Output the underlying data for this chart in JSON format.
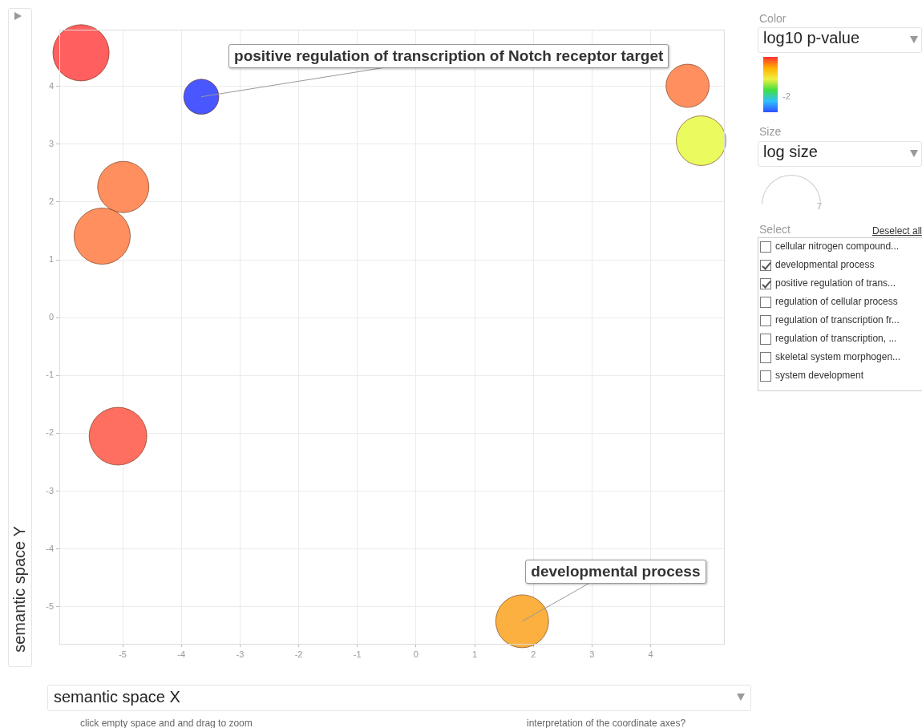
{
  "chart_data": {
    "type": "bubble",
    "xlabel": "semantic space X",
    "ylabel": "semantic space Y",
    "x": [
      -5.71,
      -3.66,
      -4.99,
      -5.35,
      -5.08,
      1.81,
      4.63,
      4.86
    ],
    "values": [
      4.58,
      3.82,
      2.26,
      1.41,
      -2.05,
      -5.25,
      4.01,
      3.06
    ],
    "sizes": [
      0.95,
      0.37,
      0.79,
      0.95,
      1,
      0.84,
      0.56,
      0.74
    ],
    "colors": [
      "#ff5555",
      "#3d4cff",
      "#ff8855",
      "#ff8855",
      "#ff6655",
      "#fbab33",
      "#ff8855",
      "#e9fb55"
    ],
    "xlim": [
      -6.08,
      5.25
    ],
    "ylim": [
      -5.64,
      4.98
    ],
    "xticks": [
      -5,
      -4,
      -3,
      -2,
      -1,
      0,
      1,
      2,
      3,
      4
    ],
    "yticks": [
      -5,
      -4,
      -3,
      -2,
      -1,
      0,
      1,
      2,
      3,
      4
    ],
    "grid": true,
    "annotations": [
      {
        "text": "positive regulation of transcription of Notch receptor target",
        "x": -3.66,
        "y": 3.82
      },
      {
        "text": "developmental process",
        "x": 1.81,
        "y": -5.25
      },
      "Color",
      "log10 p-value",
      "-2",
      "Size",
      "log size",
      "7",
      "Select",
      "Deselect all",
      "cellular nitrogen compound...",
      "developmental process",
      "positive regulation of trans...",
      "regulation of cellular process",
      "regulation of transcription fr...",
      "regulation of transcription, ...",
      "skeletal system morphogen...",
      "system development",
      "click empty space and and drag to zoom",
      "interpretation of the coordinate axes?"
    ]
  }
}
